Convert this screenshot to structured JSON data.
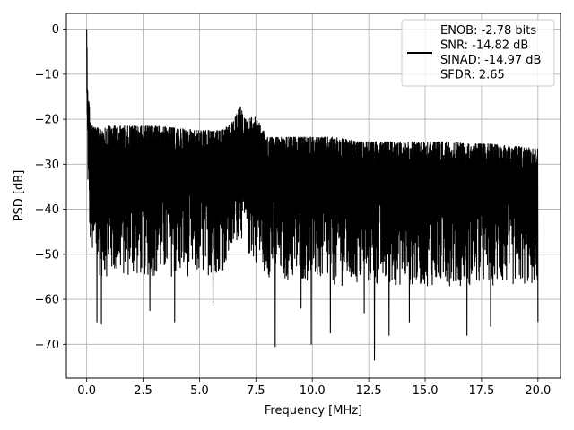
{
  "chart_data": {
    "type": "line",
    "xlabel": "Frequency [MHz]",
    "ylabel": "PSD [dB]",
    "xlim": [
      -0.9,
      21.0
    ],
    "ylim": [
      -77.5,
      3.5
    ],
    "xticks": [
      0.0,
      2.5,
      5.0,
      7.5,
      10.0,
      12.5,
      15.0,
      17.5,
      20.0
    ],
    "xtick_labels": [
      "0.0",
      "2.5",
      "5.0",
      "7.5",
      "10.0",
      "12.5",
      "15.0",
      "17.5",
      "20.0"
    ],
    "yticks": [
      0,
      -10,
      -20,
      -30,
      -40,
      -50,
      -60,
      -70
    ],
    "ytick_labels": [
      "0",
      "−10",
      "−20",
      "−30",
      "−40",
      "−50",
      "−60",
      "−70"
    ],
    "grid": true,
    "legend_position": "top-right",
    "series": [
      {
        "name": "ENOB: -2.78 bits\nSNR: -14.82 dB\nSINAD: -14.97 dB\nSFDR: 2.65",
        "color": "#000000",
        "envelope": {
          "x": [
            0.0,
            0.05,
            0.1,
            0.2,
            0.4,
            1.0,
            2.0,
            3.0,
            4.0,
            5.0,
            6.0,
            6.5,
            6.8,
            7.0,
            7.5,
            8.0,
            9.0,
            10.0,
            11.0,
            12.0,
            13.0,
            14.0,
            15.0,
            16.0,
            17.0,
            18.0,
            19.0,
            20.0
          ],
          "upper": [
            0.0,
            -12.0,
            -16.0,
            -21.0,
            -22.0,
            -21.5,
            -21.5,
            -21.5,
            -22.0,
            -22.5,
            -22.5,
            -20.5,
            -17.0,
            -20.0,
            -19.5,
            -24.0,
            -24.0,
            -24.0,
            -24.0,
            -25.0,
            -25.0,
            -25.0,
            -25.0,
            -25.0,
            -25.5,
            -25.5,
            -26.0,
            -26.5
          ],
          "lower": [
            -20.0,
            -35.0,
            -45.0,
            -50.0,
            -55.0,
            -55.0,
            -55.0,
            -55.0,
            -55.0,
            -55.0,
            -54.0,
            -50.0,
            -45.0,
            -50.0,
            -52.0,
            -55.0,
            -56.0,
            -56.0,
            -57.0,
            -57.0,
            -57.0,
            -57.0,
            -57.0,
            -57.0,
            -57.0,
            -57.0,
            -57.0,
            -57.0
          ]
        },
        "dips": [
          {
            "x": 0.45,
            "y": -65.0
          },
          {
            "x": 0.65,
            "y": -65.5
          },
          {
            "x": 2.8,
            "y": -62.5
          },
          {
            "x": 3.9,
            "y": -65.0
          },
          {
            "x": 5.6,
            "y": -61.5
          },
          {
            "x": 8.35,
            "y": -70.5
          },
          {
            "x": 9.5,
            "y": -62.0
          },
          {
            "x": 9.95,
            "y": -70.0
          },
          {
            "x": 10.8,
            "y": -67.5
          },
          {
            "x": 12.3,
            "y": -63.0
          },
          {
            "x": 12.75,
            "y": -73.5
          },
          {
            "x": 13.4,
            "y": -68.0
          },
          {
            "x": 14.3,
            "y": -65.0
          },
          {
            "x": 16.85,
            "y": -68.0
          },
          {
            "x": 17.9,
            "y": -66.0
          },
          {
            "x": 20.0,
            "y": -65.0
          }
        ]
      }
    ]
  }
}
